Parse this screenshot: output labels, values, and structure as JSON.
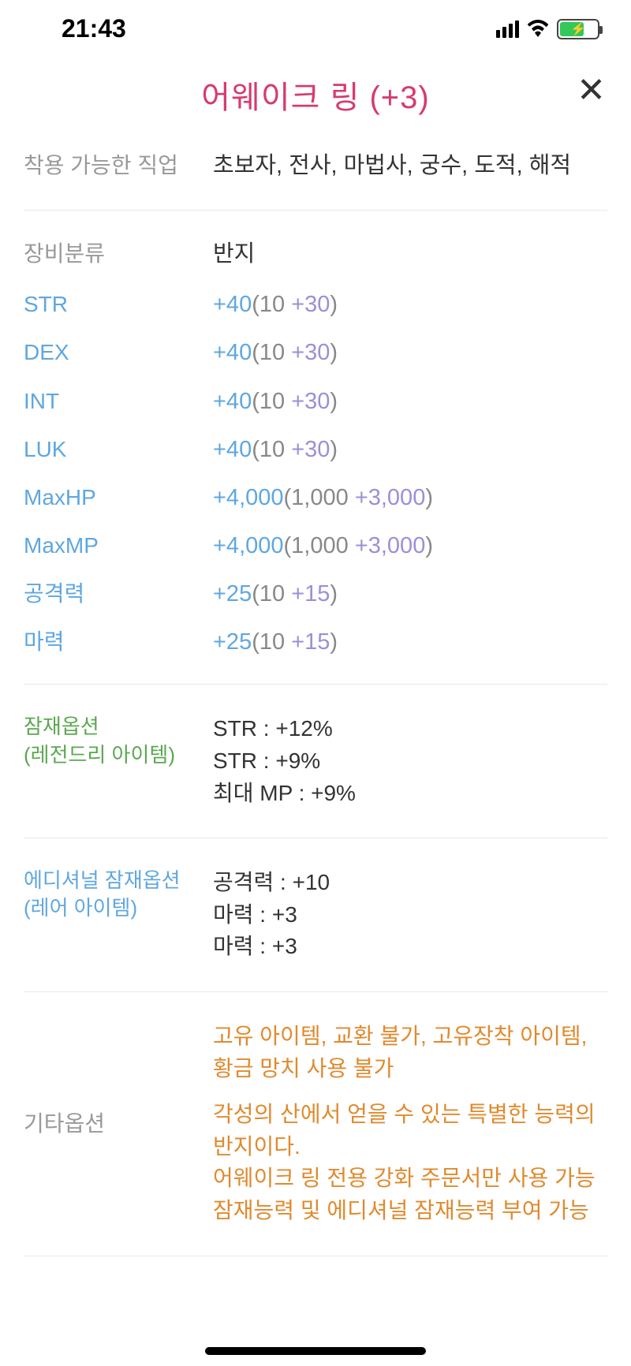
{
  "statusBar": {
    "time": "21:43"
  },
  "header": {
    "title": "어웨이크 링 (+3)"
  },
  "jobRow": {
    "label": "착용 가능한 직업",
    "value": "초보자, 전사, 마법사, 궁수, 도적, 해적"
  },
  "categoryRow": {
    "label": "장비분류",
    "value": "반지"
  },
  "stats": [
    {
      "label": "STR",
      "total": "+40",
      "base": "10",
      "bonus": "+30"
    },
    {
      "label": "DEX",
      "total": "+40",
      "base": "10",
      "bonus": "+30"
    },
    {
      "label": "INT",
      "total": "+40",
      "base": "10",
      "bonus": "+30"
    },
    {
      "label": "LUK",
      "total": "+40",
      "base": "10",
      "bonus": "+30"
    },
    {
      "label": "MaxHP",
      "total": "+4,000",
      "base": "1,000",
      "bonus": "+3,000"
    },
    {
      "label": "MaxMP",
      "total": "+4,000",
      "base": "1,000",
      "bonus": "+3,000"
    },
    {
      "label": "공격력",
      "total": "+25",
      "base": "10",
      "bonus": "+15"
    },
    {
      "label": "마력",
      "total": "+25",
      "base": "10",
      "bonus": "+15"
    }
  ],
  "potential": {
    "label1": "잠재옵션",
    "label2": "(레전드리 아이템)",
    "lines": [
      "STR : +12%",
      "STR : +9%",
      "최대 MP : +9%"
    ]
  },
  "additional": {
    "label1": "에디셔널 잠재옵션",
    "label2": "(레어 아이템)",
    "lines": [
      "공격력 : +10",
      "마력 : +3",
      "마력 : +3"
    ]
  },
  "other": {
    "label": "기타옵션",
    "para1": "고유 아이템, 교환 불가, 고유장착 아이템, 황금 망치 사용 불가",
    "para2": "각성의 산에서 얻을 수 있는 특별한 능력의 반지이다.\n어웨이크 링 전용 강화 주문서만 사용 가능\n잠재능력 및 에디셔널 잠재능력 부여 가능"
  }
}
